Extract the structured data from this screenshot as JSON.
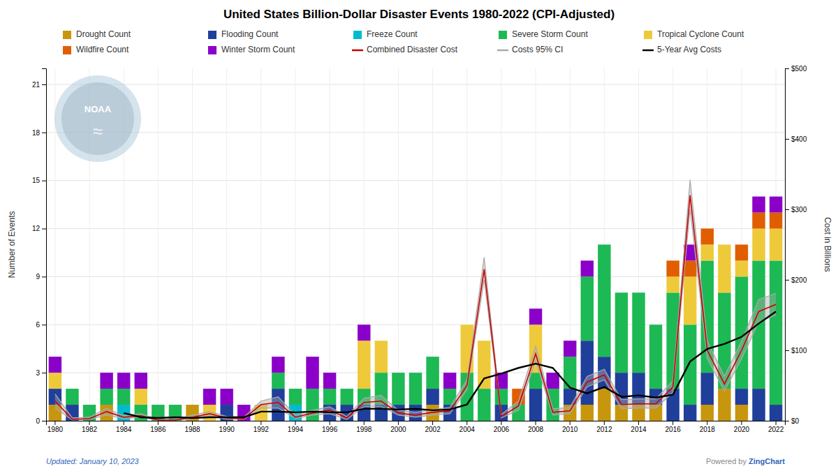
{
  "chart_data": {
    "type": "bar",
    "title": "United States Billion-Dollar Disaster Events 1980-2022 (CPI-Adjusted)",
    "categories": [
      "1980",
      null,
      "1982",
      null,
      "1984",
      null,
      "1986",
      null,
      "1988",
      null,
      "1990",
      null,
      "1992",
      null,
      "1994",
      null,
      "1996",
      null,
      "1998",
      null,
      "2000",
      null,
      "2002",
      null,
      "2004",
      null,
      "2006",
      null,
      "2008",
      null,
      "2010",
      null,
      "2012",
      null,
      "2014",
      null,
      "2016",
      null,
      "2018",
      null,
      "2020",
      null,
      "2022"
    ],
    "stacked": true,
    "grid": true,
    "legend": "top",
    "ylabel": "Number of Events",
    "y2label": "Cost in Billions",
    "ylim": [
      0,
      22
    ],
    "yticks": [
      0,
      3,
      6,
      9,
      12,
      15,
      18,
      21
    ],
    "y2lim": [
      0,
      500
    ],
    "y2ticks": [
      {
        "value": 0,
        "label": "$0"
      },
      {
        "value": 100,
        "label": "$100"
      },
      {
        "value": 200,
        "label": "$200"
      },
      {
        "value": 300,
        "label": "$300"
      },
      {
        "value": 400,
        "label": "$400"
      },
      {
        "value": 500,
        "label": "$500"
      }
    ],
    "series": [
      {
        "name": "Drought Count",
        "type": "bar",
        "color": "#C8960C",
        "values": [
          1,
          0,
          0,
          1,
          0,
          0,
          0,
          0,
          1,
          0,
          0,
          0,
          0,
          0,
          0,
          0,
          0,
          0,
          0,
          0,
          0,
          0,
          1,
          0,
          0,
          0,
          0,
          0,
          0,
          0,
          1,
          1,
          2,
          1,
          1,
          1,
          0,
          0,
          1,
          2,
          1,
          0,
          0
        ]
      },
      {
        "name": "Flooding Count",
        "type": "bar",
        "color": "#1F3F9B",
        "values": [
          1,
          1,
          0,
          0,
          0,
          0,
          0,
          0,
          0,
          0,
          1,
          0,
          0,
          2,
          0,
          0,
          1,
          1,
          1,
          1,
          1,
          1,
          1,
          1,
          0,
          0,
          1,
          0,
          2,
          0,
          1,
          4,
          2,
          2,
          2,
          1,
          2,
          1,
          2,
          0,
          1,
          2,
          1
        ]
      },
      {
        "name": "Freeze Count",
        "type": "bar",
        "color": "#00BBCC",
        "values": [
          0,
          0,
          0,
          0,
          1,
          0,
          0,
          0,
          0,
          0,
          0,
          0,
          0,
          0,
          1,
          0,
          0,
          0,
          0,
          0,
          0,
          0,
          0,
          0,
          0,
          0,
          0,
          0,
          0,
          0,
          0,
          0,
          0,
          0,
          0,
          0,
          0,
          0,
          0,
          0,
          0,
          0,
          0
        ]
      },
      {
        "name": "Severe Storm Count",
        "type": "bar",
        "color": "#1DB954",
        "values": [
          0,
          1,
          1,
          1,
          1,
          1,
          1,
          1,
          0,
          0,
          0,
          0,
          0,
          1,
          1,
          2,
          1,
          1,
          1,
          2,
          2,
          2,
          2,
          1,
          3,
          2,
          1,
          1,
          1,
          2,
          2,
          4,
          7,
          5,
          5,
          4,
          6,
          5,
          7,
          6,
          7,
          8,
          9
        ]
      },
      {
        "name": "Tropical Cyclone Count",
        "type": "bar",
        "color": "#EECA3B",
        "values": [
          1,
          0,
          0,
          0,
          0,
          1,
          0,
          0,
          0,
          1,
          0,
          0,
          1,
          0,
          0,
          0,
          0,
          0,
          3,
          2,
          0,
          0,
          0,
          0,
          3,
          3,
          0,
          0,
          3,
          0,
          0,
          0,
          0,
          0,
          0,
          0,
          1,
          3,
          1,
          3,
          1,
          2,
          2
        ]
      },
      {
        "name": "Wildfire Count",
        "type": "bar",
        "color": "#E05E00",
        "values": [
          0,
          0,
          0,
          0,
          0,
          0,
          0,
          0,
          0,
          0,
          0,
          0,
          0,
          0,
          0,
          0,
          0,
          0,
          0,
          0,
          0,
          0,
          0,
          0,
          0,
          0,
          0,
          1,
          0,
          0,
          0,
          0,
          0,
          0,
          0,
          0,
          1,
          1,
          1,
          0,
          1,
          1,
          1
        ]
      },
      {
        "name": "Winter Storm Count",
        "type": "bar",
        "color": "#8B00C8",
        "values": [
          1,
          0,
          0,
          1,
          1,
          1,
          0,
          0,
          0,
          1,
          1,
          1,
          0,
          1,
          0,
          2,
          1,
          0,
          1,
          0,
          0,
          0,
          0,
          1,
          0,
          0,
          1,
          0,
          1,
          1,
          1,
          1,
          0,
          0,
          0,
          0,
          0,
          1,
          0,
          0,
          0,
          1,
          1
        ]
      },
      {
        "name": "Combined Disaster Cost",
        "type": "line",
        "axis": "y2",
        "color": "#CC0000",
        "values": [
          28,
          2,
          3,
          13,
          5,
          7,
          1,
          1,
          5,
          10,
          4,
          3,
          23,
          26,
          5,
          11,
          15,
          4,
          26,
          28,
          11,
          8,
          12,
          14,
          50,
          215,
          6,
          21,
          95,
          12,
          14,
          55,
          65,
          23,
          24,
          24,
          48,
          320,
          100,
          52,
          100,
          155,
          165
        ]
      },
      {
        "name": "Costs 95% CI",
        "type": "area",
        "axis": "y2",
        "color": "#AAAAAA",
        "low": [
          18,
          1,
          2,
          8,
          3,
          5,
          0.5,
          0.5,
          3,
          7,
          2,
          2,
          18,
          18,
          3,
          8,
          10,
          2,
          20,
          20,
          8,
          5,
          8,
          10,
          44,
          200,
          4,
          15,
          85,
          8,
          10,
          48,
          58,
          17,
          18,
          18,
          40,
          300,
          88,
          42,
          88,
          140,
          150
        ],
        "high": [
          38,
          4,
          5,
          18,
          7,
          10,
          2,
          2,
          8,
          13,
          6,
          5,
          28,
          34,
          8,
          15,
          20,
          6,
          32,
          36,
          15,
          12,
          16,
          19,
          58,
          232,
          9,
          28,
          106,
          17,
          19,
          63,
          73,
          30,
          31,
          31,
          57,
          342,
          113,
          63,
          113,
          172,
          181
        ]
      },
      {
        "name": "5-Year Avg Costs",
        "type": "line",
        "axis": "y2",
        "color": "#000000",
        "values": [
          null,
          null,
          null,
          null,
          11,
          5,
          4,
          5,
          4,
          5,
          5,
          5,
          13,
          13,
          12,
          13,
          12,
          12,
          17,
          17,
          16,
          17,
          15,
          16,
          23,
          60,
          67,
          75,
          81,
          75,
          47,
          39,
          48,
          34,
          36,
          33,
          37,
          84,
          102,
          109,
          119,
          138,
          155
        ]
      }
    ],
    "annotations": [
      "NOAA",
      "≈",
      "Updated: January 10, 2023",
      "Powered by ",
      "ZingChart"
    ]
  }
}
